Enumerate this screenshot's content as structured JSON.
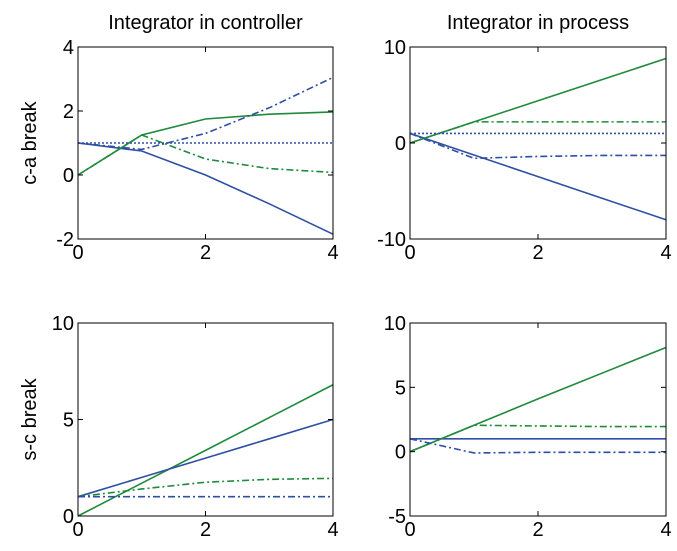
{
  "chart_data": [
    {
      "type": "line",
      "title": "Integrator in controller",
      "y_label": "c-a break",
      "x": [
        0,
        1,
        2,
        3,
        4
      ],
      "xlim": [
        0,
        4
      ],
      "xticks": [
        0,
        2,
        4
      ],
      "ylim": [
        -2,
        4
      ],
      "yticks": [
        -2,
        0,
        2,
        4
      ],
      "series": [
        {
          "color": "#1f8a3c",
          "style": "solid",
          "values": [
            0,
            1.25,
            1.75,
            1.9,
            1.97
          ]
        },
        {
          "color": "#2e4fa3",
          "style": "solid",
          "values": [
            1,
            0.75,
            0,
            -0.9,
            -1.85
          ]
        },
        {
          "color": "#2e4fa3",
          "style": "dashdot",
          "values": [
            1,
            0.8,
            1.3,
            2.1,
            3.05
          ]
        },
        {
          "color": "#1f8a3c",
          "style": "dashdot",
          "values": [
            0,
            1.25,
            0.5,
            0.2,
            0.08
          ]
        },
        {
          "color": "#2e4fa3",
          "style": "dotted",
          "values": [
            1,
            1,
            1,
            1,
            1
          ]
        }
      ]
    },
    {
      "type": "line",
      "title": "Integrator in process",
      "x": [
        0,
        1,
        2,
        3,
        4
      ],
      "xlim": [
        0,
        4
      ],
      "xticks": [
        0,
        2,
        4
      ],
      "ylim": [
        -10,
        10
      ],
      "yticks": [
        -10,
        0,
        10
      ],
      "series": [
        {
          "color": "#1f8a3c",
          "style": "solid",
          "values": [
            0,
            2.2,
            4.4,
            6.6,
            8.8
          ]
        },
        {
          "color": "#2e4fa3",
          "style": "solid",
          "values": [
            1,
            -1.25,
            -3.5,
            -5.75,
            -8
          ]
        },
        {
          "color": "#1f8a3c",
          "style": "dashdot",
          "values": [
            0,
            2.2,
            2.2,
            2.2,
            2.2
          ]
        },
        {
          "color": "#2e4fa3",
          "style": "dashdot",
          "values": [
            1,
            -1.6,
            -1.4,
            -1.3,
            -1.3
          ]
        },
        {
          "color": "#2e4fa3",
          "style": "dotted",
          "values": [
            1,
            1,
            1,
            1,
            1
          ]
        }
      ]
    },
    {
      "type": "line",
      "y_label": "s-c break",
      "x": [
        0,
        1,
        2,
        3,
        4
      ],
      "xlim": [
        0,
        4
      ],
      "xticks": [
        0,
        2,
        4
      ],
      "ylim": [
        0,
        10
      ],
      "yticks": [
        0,
        5,
        10
      ],
      "series": [
        {
          "color": "#1f8a3c",
          "style": "solid",
          "values": [
            0,
            1.7,
            3.4,
            5.1,
            6.8
          ]
        },
        {
          "color": "#2e4fa3",
          "style": "solid",
          "values": [
            1,
            2,
            3,
            4,
            5
          ]
        },
        {
          "color": "#1f8a3c",
          "style": "dashdot",
          "values": [
            1,
            1.4,
            1.75,
            1.9,
            1.95
          ]
        },
        {
          "color": "#2e4fa3",
          "style": "dashdot",
          "values": [
            1,
            1,
            1,
            1,
            1
          ]
        }
      ]
    },
    {
      "type": "line",
      "x": [
        0,
        1,
        2,
        3,
        4
      ],
      "xlim": [
        0,
        4
      ],
      "xticks": [
        0,
        2,
        4
      ],
      "ylim": [
        -5,
        10
      ],
      "yticks": [
        -5,
        0,
        5,
        10
      ],
      "series": [
        {
          "color": "#1f8a3c",
          "style": "solid",
          "values": [
            0,
            2.05,
            4.1,
            6.1,
            8.1
          ]
        },
        {
          "color": "#2e4fa3",
          "style": "solid",
          "values": [
            1,
            1,
            1,
            1,
            1
          ]
        },
        {
          "color": "#1f8a3c",
          "style": "dashdot",
          "values": [
            0,
            2.05,
            2.0,
            1.95,
            1.95
          ]
        },
        {
          "color": "#2e4fa3",
          "style": "dashdot",
          "values": [
            1,
            -0.1,
            -0.05,
            -0.05,
            -0.05
          ]
        }
      ]
    }
  ]
}
